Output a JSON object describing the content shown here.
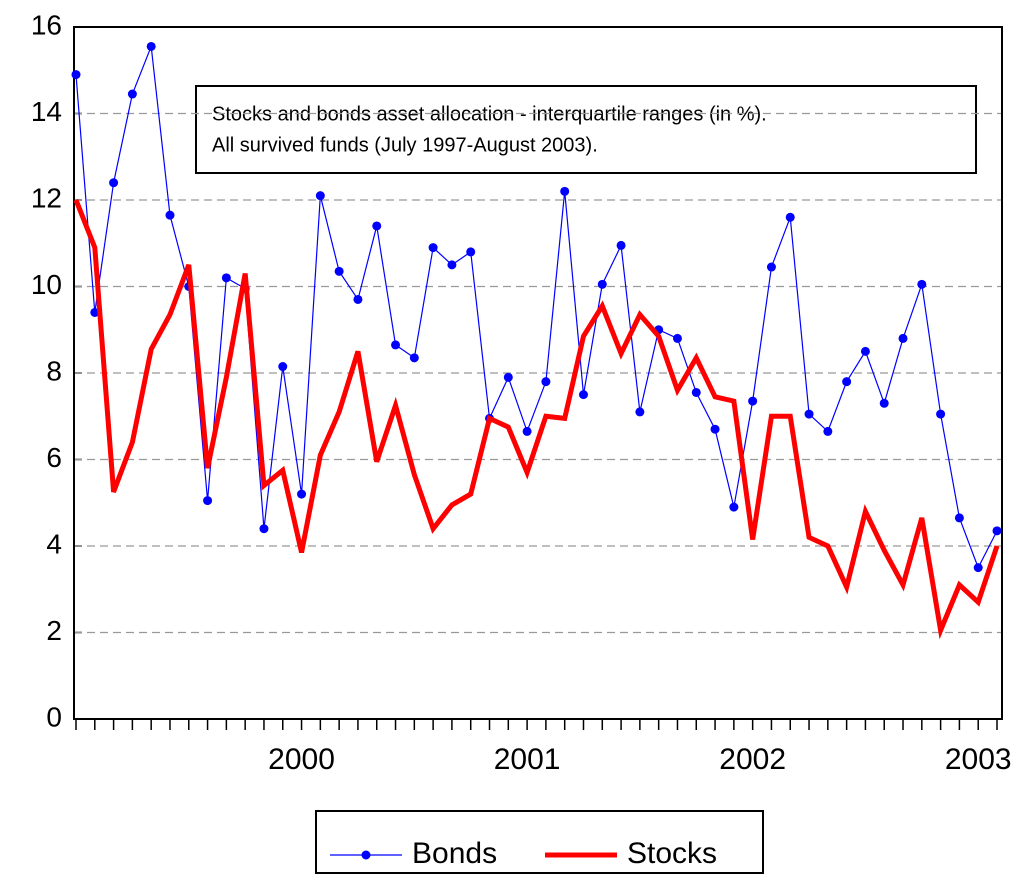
{
  "chart_data": {
    "type": "line",
    "annotation": [
      "Stocks and bonds asset allocation - interquartile ranges (in %).",
      "All survived funds (July 1997-August 2003)."
    ],
    "categories": [
      null,
      null,
      null,
      null,
      null,
      null,
      null,
      null,
      null,
      null,
      null,
      null,
      "2000",
      null,
      null,
      null,
      null,
      null,
      null,
      null,
      null,
      null,
      null,
      null,
      "2001",
      null,
      null,
      null,
      null,
      null,
      null,
      null,
      null,
      null,
      null,
      null,
      "2002",
      null,
      null,
      null,
      null,
      null,
      null,
      null,
      null,
      null,
      null,
      null,
      "2003",
      null
    ],
    "series": [
      {
        "name": "Bonds",
        "color": "#0000ff",
        "values": [
          14.9,
          9.4,
          12.4,
          14.45,
          15.55,
          11.65,
          10.0,
          5.05,
          10.2,
          9.95,
          4.4,
          8.15,
          5.2,
          12.1,
          10.35,
          9.7,
          11.4,
          8.65,
          8.35,
          10.9,
          10.5,
          10.8,
          6.95,
          7.9,
          6.65,
          7.8,
          12.2,
          7.5,
          10.05,
          10.95,
          7.1,
          9.0,
          8.8,
          7.55,
          6.7,
          4.9,
          7.35,
          10.45,
          11.6,
          7.05,
          6.65,
          7.8,
          8.5,
          7.3,
          8.8,
          10.05,
          7.05,
          4.65,
          3.5,
          4.35
        ]
      },
      {
        "name": "Stocks",
        "color": "#ff0000",
        "values": [
          12.0,
          10.9,
          5.25,
          6.4,
          8.55,
          9.35,
          10.5,
          5.8,
          7.9,
          10.3,
          5.4,
          5.75,
          3.85,
          6.1,
          7.1,
          8.5,
          5.95,
          7.25,
          5.65,
          4.4,
          4.95,
          5.2,
          6.95,
          6.75,
          5.7,
          7.0,
          6.95,
          8.85,
          9.55,
          8.45,
          9.35,
          8.85,
          7.6,
          8.35,
          7.45,
          7.35,
          4.15,
          7.0,
          7.0,
          4.2,
          4.0,
          3.05,
          4.8,
          3.9,
          3.1,
          4.65,
          2.05,
          3.1,
          2.7,
          4.0
        ]
      }
    ],
    "ylim": [
      0,
      16
    ],
    "yticks": [
      0,
      2,
      4,
      6,
      8,
      10,
      12,
      14,
      16
    ],
    "grid": true
  }
}
